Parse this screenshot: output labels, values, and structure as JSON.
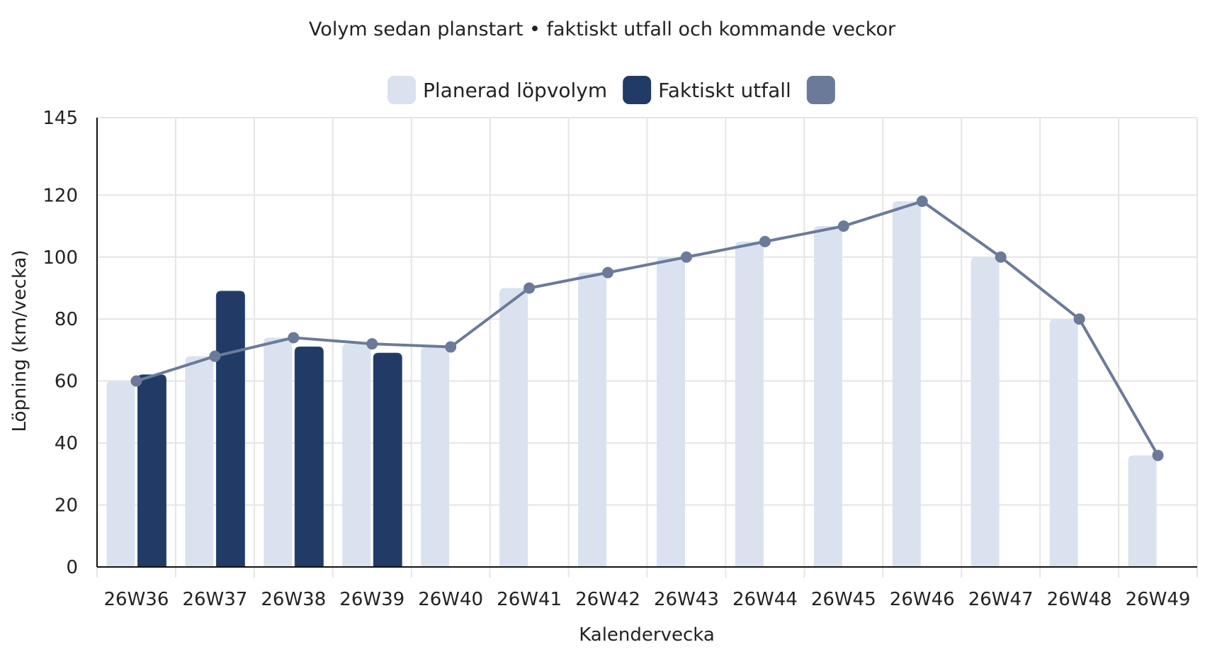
{
  "chart_data": {
    "type": "bar",
    "title": "Volym sedan planstart • faktiskt utfall och kommande veckor",
    "xlabel": "Kalendervecka",
    "ylabel": "Löpning (km/vecka)",
    "ylim": [
      0,
      145
    ],
    "yticks": [
      0,
      20,
      40,
      60,
      80,
      100,
      120,
      145
    ],
    "grid": true,
    "legend_position": "top-center",
    "categories": [
      "26W36",
      "26W37",
      "26W38",
      "26W39",
      "26W40",
      "26W41",
      "26W42",
      "26W43",
      "26W44",
      "26W45",
      "26W46",
      "26W47",
      "26W48",
      "26W49"
    ],
    "series": [
      {
        "name": "Planerad löpvolym",
        "type": "bar",
        "color": "#dae2f0",
        "values": [
          60,
          68,
          74,
          72,
          71,
          90,
          95,
          100,
          105,
          110,
          118,
          100,
          80,
          36
        ]
      },
      {
        "name": "Faktiskt utfall",
        "type": "bar",
        "color": "#213a66",
        "values": [
          62,
          89,
          71,
          69,
          null,
          null,
          null,
          null,
          null,
          null,
          null,
          null,
          null,
          null
        ]
      },
      {
        "name": "",
        "type": "line",
        "color": "#6b7a99",
        "values": [
          60,
          68,
          74,
          72,
          71,
          90,
          95,
          100,
          105,
          110,
          118,
          100,
          80,
          36
        ]
      }
    ]
  }
}
